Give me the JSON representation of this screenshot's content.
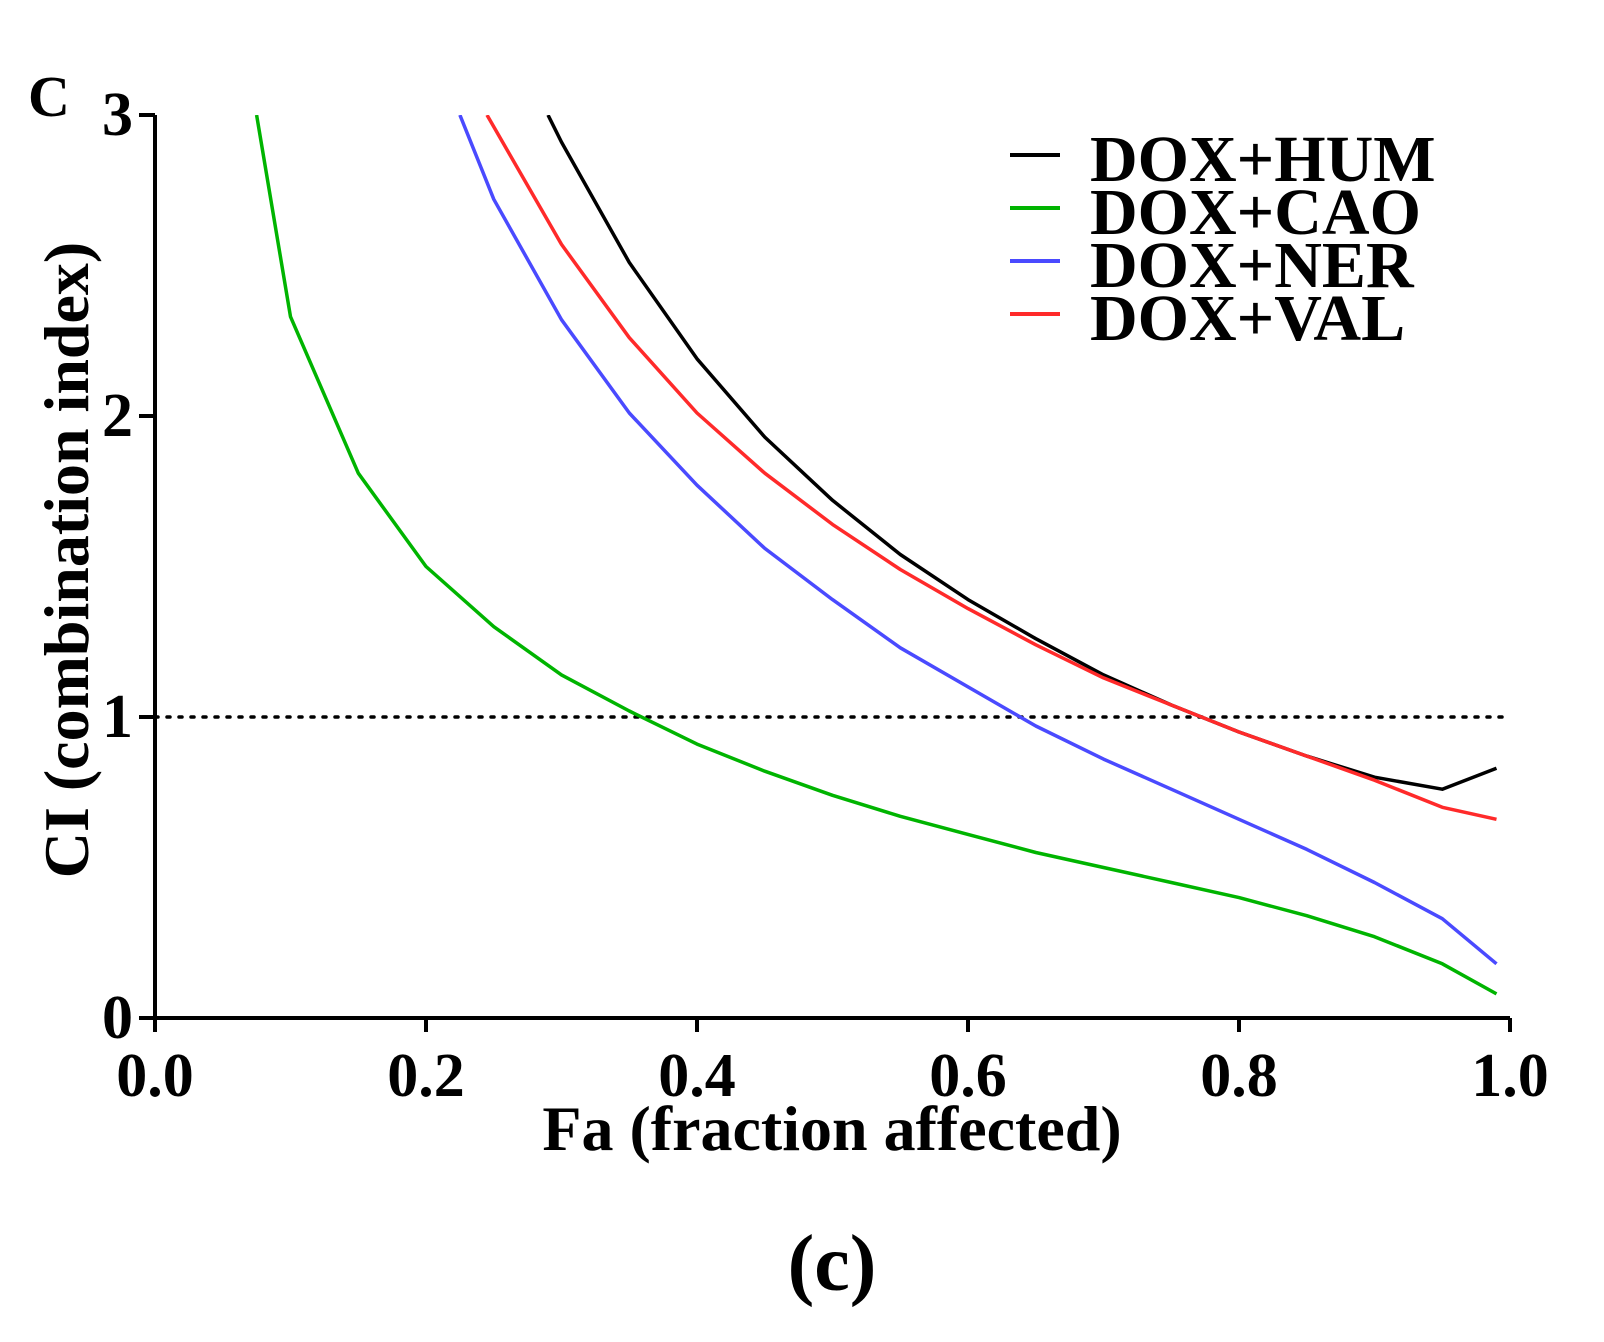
{
  "panel_letter": "C",
  "caption": "(c)",
  "colors": {
    "axis": "#000000",
    "reference": "#000000",
    "DOX+HUM": "#000000",
    "DOX+CAO": "#00b400",
    "DOX+NER": "#4a4aff",
    "DOX+VAL": "#ff2a2a"
  },
  "chart_data": {
    "type": "line",
    "title": "",
    "xlabel": "Fa (fraction affected)",
    "ylabel": "CI (combination index)",
    "xlim": [
      0.0,
      1.0
    ],
    "ylim": [
      0,
      3
    ],
    "xticks": [
      "0.0",
      "0.2",
      "0.4",
      "0.6",
      "0.8",
      "1.0"
    ],
    "yticks": [
      "0",
      "1",
      "2",
      "3"
    ],
    "xtick_values": [
      0.0,
      0.2,
      0.4,
      0.6,
      0.8,
      1.0
    ],
    "ytick_values": [
      0,
      1,
      2,
      3
    ],
    "reference_line": {
      "y": 1,
      "style": "dotted"
    },
    "legend_position": "top-right",
    "series": [
      {
        "name": "DOX+HUM",
        "x": [
          0.29,
          0.3,
          0.35,
          0.4,
          0.45,
          0.5,
          0.55,
          0.6,
          0.65,
          0.7,
          0.75,
          0.8,
          0.85,
          0.9,
          0.95,
          0.99
        ],
        "y": [
          3.0,
          2.91,
          2.51,
          2.19,
          1.93,
          1.72,
          1.54,
          1.39,
          1.26,
          1.14,
          1.04,
          0.95,
          0.87,
          0.8,
          0.76,
          0.83
        ]
      },
      {
        "name": "DOX+CAO",
        "x": [
          0.075,
          0.1,
          0.15,
          0.2,
          0.25,
          0.3,
          0.35,
          0.4,
          0.45,
          0.5,
          0.55,
          0.6,
          0.65,
          0.7,
          0.75,
          0.8,
          0.85,
          0.9,
          0.95,
          0.99
        ],
        "y": [
          3.0,
          2.33,
          1.81,
          1.5,
          1.3,
          1.14,
          1.02,
          0.91,
          0.82,
          0.74,
          0.67,
          0.61,
          0.55,
          0.5,
          0.45,
          0.4,
          0.34,
          0.27,
          0.18,
          0.08
        ]
      },
      {
        "name": "DOX+NER",
        "x": [
          0.225,
          0.25,
          0.3,
          0.35,
          0.4,
          0.45,
          0.5,
          0.55,
          0.6,
          0.65,
          0.7,
          0.75,
          0.8,
          0.85,
          0.9,
          0.95,
          0.99
        ],
        "y": [
          3.0,
          2.72,
          2.32,
          2.01,
          1.77,
          1.56,
          1.39,
          1.23,
          1.1,
          0.97,
          0.86,
          0.76,
          0.66,
          0.56,
          0.45,
          0.33,
          0.18
        ]
      },
      {
        "name": "DOX+VAL",
        "x": [
          0.245,
          0.3,
          0.35,
          0.4,
          0.45,
          0.5,
          0.55,
          0.6,
          0.65,
          0.7,
          0.75,
          0.8,
          0.85,
          0.9,
          0.95,
          0.99
        ],
        "y": [
          3.0,
          2.57,
          2.26,
          2.01,
          1.81,
          1.64,
          1.49,
          1.36,
          1.24,
          1.13,
          1.04,
          0.95,
          0.87,
          0.79,
          0.7,
          0.66
        ]
      }
    ]
  }
}
